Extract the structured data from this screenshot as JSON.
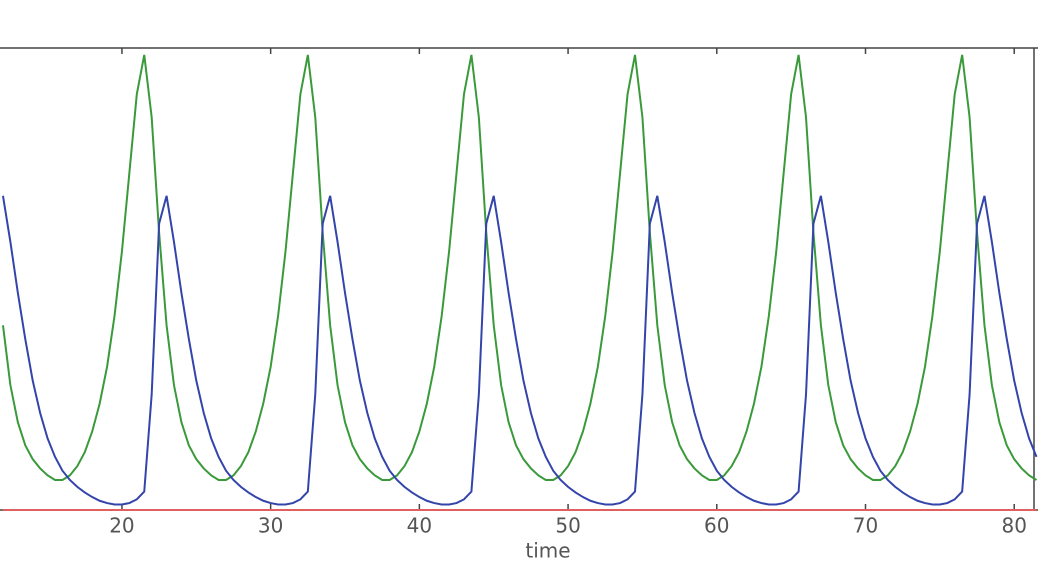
{
  "chart_data": {
    "type": "line",
    "xlabel": "time",
    "x": [
      12,
      12.5,
      13,
      13.5,
      14,
      14.5,
      15,
      15.5,
      16,
      16.5,
      17,
      17.5,
      18,
      18.5,
      19,
      19.5,
      20,
      20.5,
      21,
      21.5,
      22,
      22.5,
      23,
      23.5,
      24,
      24.5,
      25,
      25.5,
      26,
      26.5,
      27,
      27.5,
      28,
      28.5,
      29,
      29.5,
      30,
      30.5,
      31,
      31.5,
      32,
      32.5,
      33,
      33.5,
      34,
      34.5,
      35,
      35.5,
      36,
      36.5,
      37,
      37.5,
      38,
      38.5,
      39,
      39.5,
      40,
      40.5,
      41,
      41.5,
      42,
      42.5,
      43,
      43.5,
      44,
      44.5,
      45,
      45.5,
      46,
      46.5,
      47,
      47.5,
      48,
      48.5,
      49,
      49.5,
      50,
      50.5,
      51,
      51.5,
      52,
      52.5,
      53,
      53.5,
      54,
      54.5,
      55,
      55.5,
      56,
      56.5,
      57,
      57.5,
      58,
      58.5,
      59,
      59.5,
      60,
      60.5,
      61,
      61.5,
      62,
      62.5,
      63,
      63.5,
      64,
      64.5,
      65,
      65.5,
      66,
      66.5,
      67,
      67.5,
      68,
      68.5,
      69,
      69.5,
      70,
      70.5,
      71,
      71.5,
      72,
      72.5,
      73,
      73.5,
      74,
      74.5,
      75,
      75.5,
      76,
      76.5,
      77,
      77.5,
      78,
      78.5,
      79,
      79.5,
      80,
      80.5,
      81,
      81.5
    ],
    "series": [
      {
        "color": "#3a9a3a",
        "values": [
          40,
          27,
          19,
          14,
          11,
          9,
          7.5,
          6.5,
          6.5,
          7.5,
          9.5,
          12.5,
          17,
          23,
          31,
          42,
          56,
          73,
          90,
          98.5,
          85,
          60,
          40,
          27,
          19,
          14,
          11,
          9,
          7.5,
          6.5,
          6.5,
          7.5,
          9.5,
          12.5,
          17,
          23,
          31,
          42,
          56,
          73,
          90,
          98.5,
          85,
          60,
          40,
          27,
          19,
          14,
          11,
          9,
          7.5,
          6.5,
          6.5,
          7.5,
          9.5,
          12.5,
          17,
          23,
          31,
          42,
          56,
          73,
          90,
          98.5,
          85,
          60,
          40,
          27,
          19,
          14,
          11,
          9,
          7.5,
          6.5,
          6.5,
          7.5,
          9.5,
          12.5,
          17,
          23,
          31,
          42,
          56,
          73,
          90,
          98.5,
          85,
          60,
          40,
          27,
          19,
          14,
          11,
          9,
          7.5,
          6.5,
          6.5,
          7.5,
          9.5,
          12.5,
          17,
          23,
          31,
          42,
          56,
          73,
          90,
          98.5,
          85,
          60,
          40,
          27,
          19,
          14,
          11,
          9,
          7.5,
          6.5,
          6.5,
          7.5,
          9.5,
          12.5,
          17,
          23,
          31,
          42,
          56,
          73,
          90,
          98.5,
          85,
          60,
          40,
          27,
          19,
          14,
          11,
          9,
          7.5,
          6.5
        ]
      },
      {
        "color": "#3344aa",
        "values": [
          68,
          58,
          47,
          37,
          28,
          21,
          15.5,
          11.5,
          8.5,
          6.5,
          5,
          3.8,
          2.8,
          2,
          1.5,
          1.2,
          1.2,
          1.5,
          2.3,
          4,
          25,
          62,
          68,
          58,
          47,
          37,
          28,
          21,
          15.5,
          11.5,
          8.5,
          6.5,
          5,
          3.8,
          2.8,
          2,
          1.5,
          1.2,
          1.2,
          1.5,
          2.3,
          4,
          25,
          62,
          68,
          58,
          47,
          37,
          28,
          21,
          15.5,
          11.5,
          8.5,
          6.5,
          5,
          3.8,
          2.8,
          2,
          1.5,
          1.2,
          1.2,
          1.5,
          2.3,
          4,
          25,
          62,
          68,
          58,
          47,
          37,
          28,
          21,
          15.5,
          11.5,
          8.5,
          6.5,
          5,
          3.8,
          2.8,
          2,
          1.5,
          1.2,
          1.2,
          1.5,
          2.3,
          4,
          25,
          62,
          68,
          58,
          47,
          37,
          28,
          21,
          15.5,
          11.5,
          8.5,
          6.5,
          5,
          3.8,
          2.8,
          2,
          1.5,
          1.2,
          1.2,
          1.5,
          2.3,
          4,
          25,
          62,
          68,
          58,
          47,
          37,
          28,
          21,
          15.5,
          11.5,
          8.5,
          6.5,
          5,
          3.8,
          2.8,
          2,
          1.5,
          1.2,
          1.2,
          1.5,
          2.3,
          4,
          25,
          62,
          68,
          58,
          47,
          37,
          28,
          21,
          15.5,
          11.5
        ]
      },
      {
        "color": "#e06060",
        "x": [
          12,
          81.5
        ],
        "values": [
          0,
          0
        ]
      }
    ],
    "xlim": [
      11.8,
      81.6
    ],
    "ylim": [
      0,
      100
    ],
    "xticks": [
      20,
      30,
      40,
      50,
      60,
      70,
      80
    ]
  }
}
